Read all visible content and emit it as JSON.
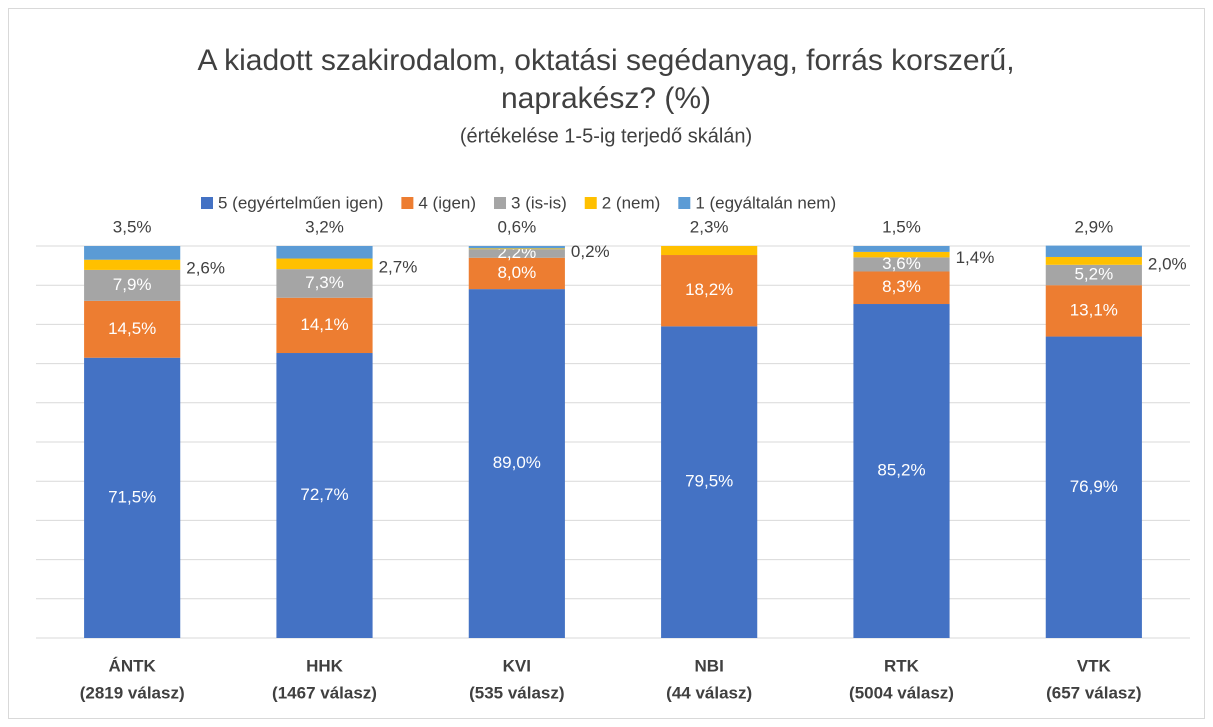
{
  "chart_data": {
    "type": "stacked-bar",
    "title": [
      "A kiadott szakirodalom, oktatási segédanyag, forrás korszerű,",
      "naprakész? (%)"
    ],
    "subtitle": "(értékelése 1-5-ig terjedő skálán)",
    "categories": [
      [
        "ÁNTK",
        "(2819 válasz)"
      ],
      [
        "HHK",
        "(1467 válasz)"
      ],
      [
        "KVI",
        "(535 válasz)"
      ],
      [
        "NBI",
        "(44 válasz)"
      ],
      [
        "RTK",
        "(5004 válasz)"
      ],
      [
        "VTK",
        "(657 válasz)"
      ]
    ],
    "series": [
      {
        "name": "5 (egyértelműen igen)",
        "color": "#4472c4",
        "values": [
          71.5,
          72.7,
          89.0,
          79.5,
          85.2,
          76.9
        ],
        "value_labels": [
          "71,5%",
          "72,7%",
          "89,0%",
          "79,5%",
          "85,2%",
          "76,9%"
        ]
      },
      {
        "name": "4 (igen)",
        "color": "#ed7d31",
        "values": [
          14.5,
          14.1,
          8.0,
          18.2,
          8.3,
          13.1
        ],
        "value_labels": [
          "14,5%",
          "14,1%",
          "8,0%",
          "18,2%",
          "8,3%",
          "13,1%"
        ]
      },
      {
        "name": "3 (is-is)",
        "color": "#a5a5a5",
        "values": [
          7.9,
          7.3,
          2.2,
          null,
          3.6,
          5.2
        ],
        "value_labels": [
          "7,9%",
          "7,3%",
          "2,2%",
          null,
          "3,6%",
          "5,2%"
        ]
      },
      {
        "name": "2 (nem)",
        "color": "#ffc000",
        "values": [
          2.6,
          2.7,
          0.2,
          2.3,
          1.4,
          2.0
        ],
        "value_labels": [
          "2,6%",
          "2,7%",
          "0,2%",
          "2,3%",
          "1,4%",
          "2,0%"
        ]
      },
      {
        "name": "1 (egyáltalán nem)",
        "color": "#5b9bd5",
        "values": [
          3.5,
          3.2,
          0.6,
          null,
          1.5,
          2.9
        ],
        "value_labels": [
          "3,5%",
          "3,2%",
          "0,6%",
          null,
          "1,5%",
          "2,9%"
        ]
      }
    ],
    "ylim": [
      0,
      100
    ],
    "ygrid": [
      0,
      10,
      20,
      30,
      40,
      50,
      60,
      70,
      80,
      90,
      100
    ],
    "legend": "top"
  }
}
